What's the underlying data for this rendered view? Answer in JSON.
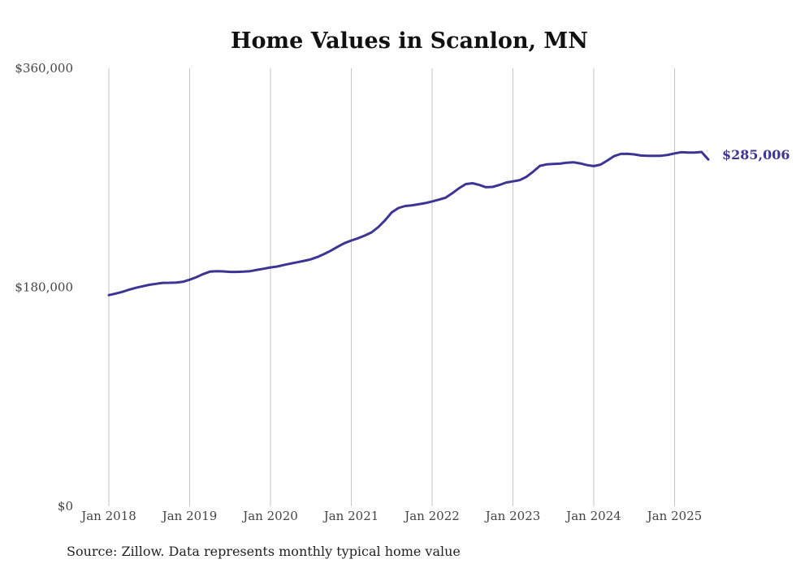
{
  "chart_data": {
    "type": "line",
    "title": "Home Values in Scanlon, MN",
    "xlabel": "",
    "ylabel": "",
    "ylim": [
      0,
      360000
    ],
    "y_ticks": [
      "$0",
      "$180,000",
      "$360,000"
    ],
    "x_ticks": [
      "Jan 2018",
      "Jan 2019",
      "Jan 2020",
      "Jan 2021",
      "Jan 2022",
      "Jan 2023",
      "Jan 2024",
      "Jan 2025"
    ],
    "grid": "vertical",
    "line_color": "#3d3594",
    "end_label": "$285,006",
    "source": "Source: Zillow. Data represents monthly typical home value",
    "x": [
      "2018-01",
      "2018-02",
      "2018-03",
      "2018-04",
      "2018-05",
      "2018-06",
      "2018-07",
      "2018-08",
      "2018-09",
      "2018-10",
      "2018-11",
      "2018-12",
      "2019-01",
      "2019-02",
      "2019-03",
      "2019-04",
      "2019-05",
      "2019-06",
      "2019-07",
      "2019-08",
      "2019-09",
      "2019-10",
      "2019-11",
      "2019-12",
      "2020-01",
      "2020-02",
      "2020-03",
      "2020-04",
      "2020-05",
      "2020-06",
      "2020-07",
      "2020-08",
      "2020-09",
      "2020-10",
      "2020-11",
      "2020-12",
      "2021-01",
      "2021-02",
      "2021-03",
      "2021-04",
      "2021-05",
      "2021-06",
      "2021-07",
      "2021-08",
      "2021-09",
      "2021-10",
      "2021-11",
      "2021-12",
      "2022-01",
      "2022-02",
      "2022-03",
      "2022-04",
      "2022-05",
      "2022-06",
      "2022-07",
      "2022-08",
      "2022-09",
      "2022-10",
      "2022-11",
      "2022-12",
      "2023-01",
      "2023-02",
      "2023-03",
      "2023-04",
      "2023-05",
      "2023-06",
      "2023-07",
      "2023-08",
      "2023-09",
      "2023-10",
      "2023-11",
      "2023-12",
      "2024-01",
      "2024-02",
      "2024-03",
      "2024-04",
      "2024-05",
      "2024-06",
      "2024-07",
      "2024-08",
      "2024-09",
      "2024-10",
      "2024-11",
      "2024-12",
      "2025-01",
      "2025-02",
      "2025-03",
      "2025-04",
      "2025-05",
      "2025-06"
    ],
    "series": [
      {
        "values": [
          173500,
          174800,
          176200,
          178000,
          179500,
          180800,
          182000,
          182800,
          183600,
          183700,
          183900,
          184500,
          186200,
          188300,
          190800,
          192800,
          193200,
          193000,
          192600,
          192600,
          192800,
          193200,
          194300,
          195200,
          196300,
          197000,
          198300,
          199500,
          200600,
          201700,
          203000,
          204900,
          207400,
          210200,
          213300,
          216300,
          218400,
          220300,
          222500,
          225100,
          229400,
          235000,
          241500,
          245100,
          246800,
          247300,
          248200,
          249200,
          250500,
          252000,
          253600,
          257300,
          261400,
          264800,
          265500,
          264100,
          262200,
          262500,
          264100,
          266100,
          267000,
          268000,
          270800,
          275000,
          279800,
          281000,
          281300,
          281600,
          282400,
          282700,
          281800,
          280400,
          279600,
          280800,
          284100,
          287700,
          289600,
          289700,
          289200,
          288300,
          288100,
          288100,
          288100,
          288800,
          290000,
          291000,
          290700,
          290700,
          291200,
          285006
        ]
      }
    ]
  }
}
